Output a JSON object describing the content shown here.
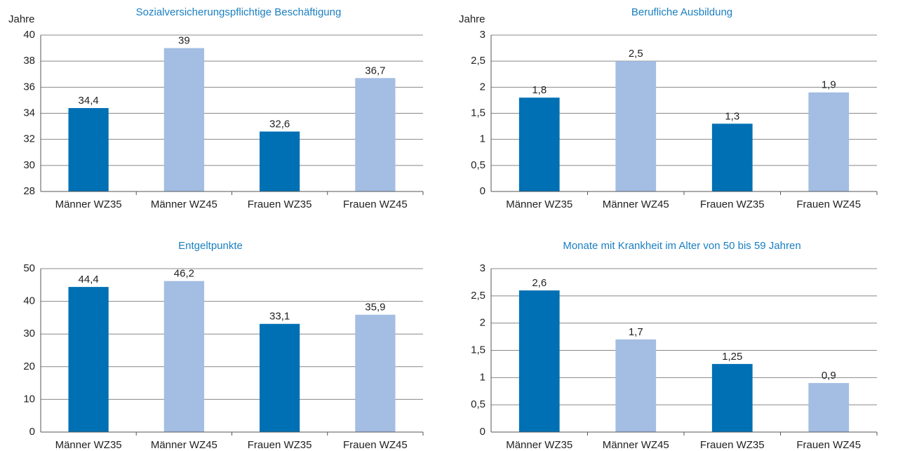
{
  "chart_data": [
    {
      "type": "bar",
      "title": "Sozialversicherungspflichtige Beschäftigung",
      "y_label": "Jahre",
      "categories": [
        "Männer WZ35",
        "Männer WZ45",
        "Frauen WZ35",
        "Frauen WZ45"
      ],
      "values": [
        34.4,
        39,
        32.6,
        36.7
      ],
      "value_labels": [
        "34,4",
        "39",
        "32,6",
        "36,7"
      ],
      "colors": [
        "#0070b4",
        "#a3bde3",
        "#0070b4",
        "#a3bde3"
      ],
      "ylim": [
        28,
        40
      ],
      "yticks": [
        28,
        30,
        32,
        34,
        36,
        38,
        40
      ],
      "grid": true
    },
    {
      "type": "bar",
      "title": "Berufliche Ausbildung",
      "y_label": "Jahre",
      "categories": [
        "Männer WZ35",
        "Männer WZ45",
        "Frauen WZ35",
        "Frauen WZ45"
      ],
      "values": [
        1.8,
        2.5,
        1.3,
        1.9
      ],
      "value_labels": [
        "1,8",
        "2,5",
        "1,3",
        "1,9"
      ],
      "colors": [
        "#0070b4",
        "#a3bde3",
        "#0070b4",
        "#a3bde3"
      ],
      "ylim": [
        0,
        3
      ],
      "yticks": [
        0,
        {
          "value": 0.5,
          "label": "0,5"
        },
        1,
        {
          "value": 1.5,
          "label": "1,5"
        },
        2,
        {
          "value": 2.5,
          "label": "2,5"
        },
        3
      ],
      "grid": true
    },
    {
      "type": "bar",
      "title": "Entgeltpunkte",
      "categories": [
        "Männer WZ35",
        "Männer WZ45",
        "Frauen WZ35",
        "Frauen WZ45"
      ],
      "values": [
        44.4,
        46.2,
        33.1,
        35.9
      ],
      "value_labels": [
        "44,4",
        "46,2",
        "33,1",
        "35,9"
      ],
      "colors": [
        "#0070b4",
        "#a3bde3",
        "#0070b4",
        "#a3bde3"
      ],
      "ylim": [
        0,
        50
      ],
      "yticks": [
        0,
        10,
        20,
        30,
        40,
        50
      ],
      "grid": true
    },
    {
      "type": "bar",
      "title": "Monate mit Krankheit im Alter von 50 bis 59 Jahren",
      "categories": [
        "Männer WZ35",
        "Männer WZ45",
        "Frauen WZ35",
        "Frauen WZ45"
      ],
      "values": [
        2.6,
        1.7,
        1.25,
        0.9
      ],
      "value_labels": [
        "2,6",
        "1,7",
        "1,25",
        "0,9"
      ],
      "colors": [
        "#0070b4",
        "#a3bde3",
        "#0070b4",
        "#a3bde3"
      ],
      "ylim": [
        0,
        3
      ],
      "yticks": [
        0,
        {
          "value": 0.5,
          "label": "0,5"
        },
        1,
        {
          "value": 1.5,
          "label": "1,5"
        },
        2,
        {
          "value": 2.5,
          "label": "2,5"
        },
        3
      ],
      "grid": true
    }
  ]
}
